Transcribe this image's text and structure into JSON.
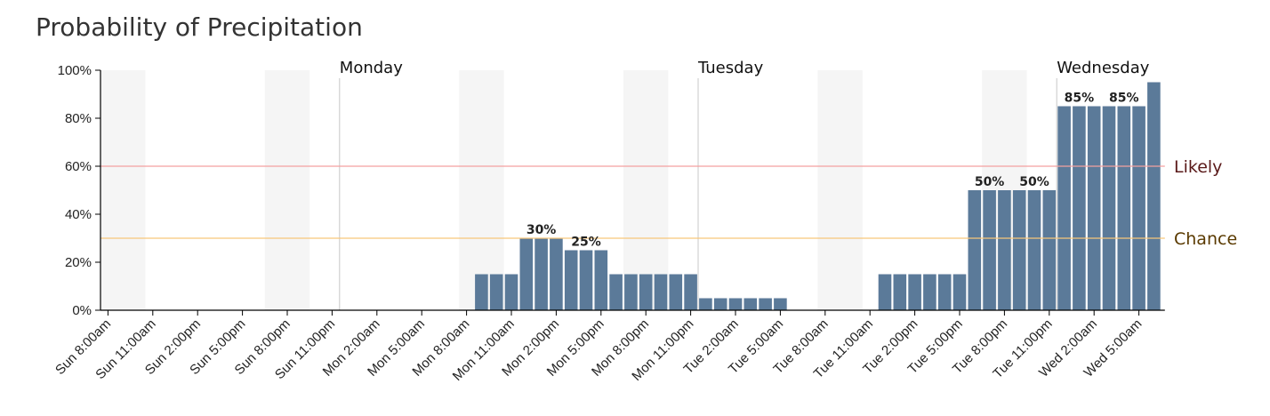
{
  "title": "Probability of Precipitation",
  "colors": {
    "bar": "#5b7a99",
    "likely": "#f4a0a0",
    "chance": "#f8c67a",
    "likely_text": "#5a1a1a",
    "chance_text": "#5a3a00",
    "night_band": "#f5f5f5"
  },
  "chart_data": {
    "type": "bar",
    "ylabel": "",
    "xlabel": "",
    "ylim": [
      0,
      100
    ],
    "yticks": [
      "0%",
      "20%",
      "40%",
      "60%",
      "80%",
      "100%"
    ],
    "ytick_values": [
      0,
      20,
      40,
      60,
      80,
      100
    ],
    "series": [
      {
        "values": [
          0,
          0,
          0,
          0,
          0,
          0,
          0,
          0,
          0,
          0,
          0,
          0,
          0,
          0,
          0,
          0,
          0,
          0,
          0,
          0,
          0,
          0,
          0,
          0,
          0,
          15,
          15,
          15,
          30,
          30,
          30,
          25,
          25,
          25,
          15,
          15,
          15,
          15,
          15,
          15,
          5,
          5,
          5,
          5,
          5,
          5,
          0,
          0,
          0,
          0,
          0,
          0,
          15,
          15,
          15,
          15,
          15,
          15,
          50,
          50,
          50,
          50,
          50,
          50,
          85,
          85,
          85,
          85,
          85,
          85,
          95
        ]
      }
    ],
    "xticks": [
      "Sun 8:00am",
      "Sun 11:00am",
      "Sun 2:00pm",
      "Sun 5:00pm",
      "Sun 8:00pm",
      "Sun 11:00pm",
      "Mon 2:00am",
      "Mon 5:00am",
      "Mon 8:00am",
      "Mon 11:00am",
      "Mon 2:00pm",
      "Mon 5:00pm",
      "Mon 8:00pm",
      "Mon 11:00pm",
      "Tue 2:00am",
      "Tue 5:00am",
      "Tue 8:00am",
      "Tue 11:00am",
      "Tue 2:00pm",
      "Tue 5:00pm",
      "Tue 8:00pm",
      "Tue 11:00pm",
      "Wed 2:00am",
      "Wed 5:00am"
    ],
    "day_labels": [
      {
        "label": "Monday",
        "hour_index": 16
      },
      {
        "label": "Tuesday",
        "hour_index": 40
      },
      {
        "label": "Wednesday",
        "hour_index": 64
      }
    ],
    "bar_labels": [
      {
        "text": "30%",
        "hour_index": 29,
        "value": 30
      },
      {
        "text": "25%",
        "hour_index": 32,
        "value": 25
      },
      {
        "text": "50%",
        "hour_index": 59,
        "value": 50
      },
      {
        "text": "50%",
        "hour_index": 62,
        "value": 50
      },
      {
        "text": "85%",
        "hour_index": 65,
        "value": 85
      },
      {
        "text": "85%",
        "hour_index": 68,
        "value": 85
      }
    ],
    "thresholds": [
      {
        "label": "Likely",
        "value": 60
      },
      {
        "label": "Chance",
        "value": 30
      }
    ],
    "shaded_hours": [
      [
        0,
        3
      ],
      [
        11,
        14
      ],
      [
        24,
        27
      ],
      [
        35,
        38
      ],
      [
        48,
        51
      ],
      [
        59,
        62
      ]
    ]
  }
}
